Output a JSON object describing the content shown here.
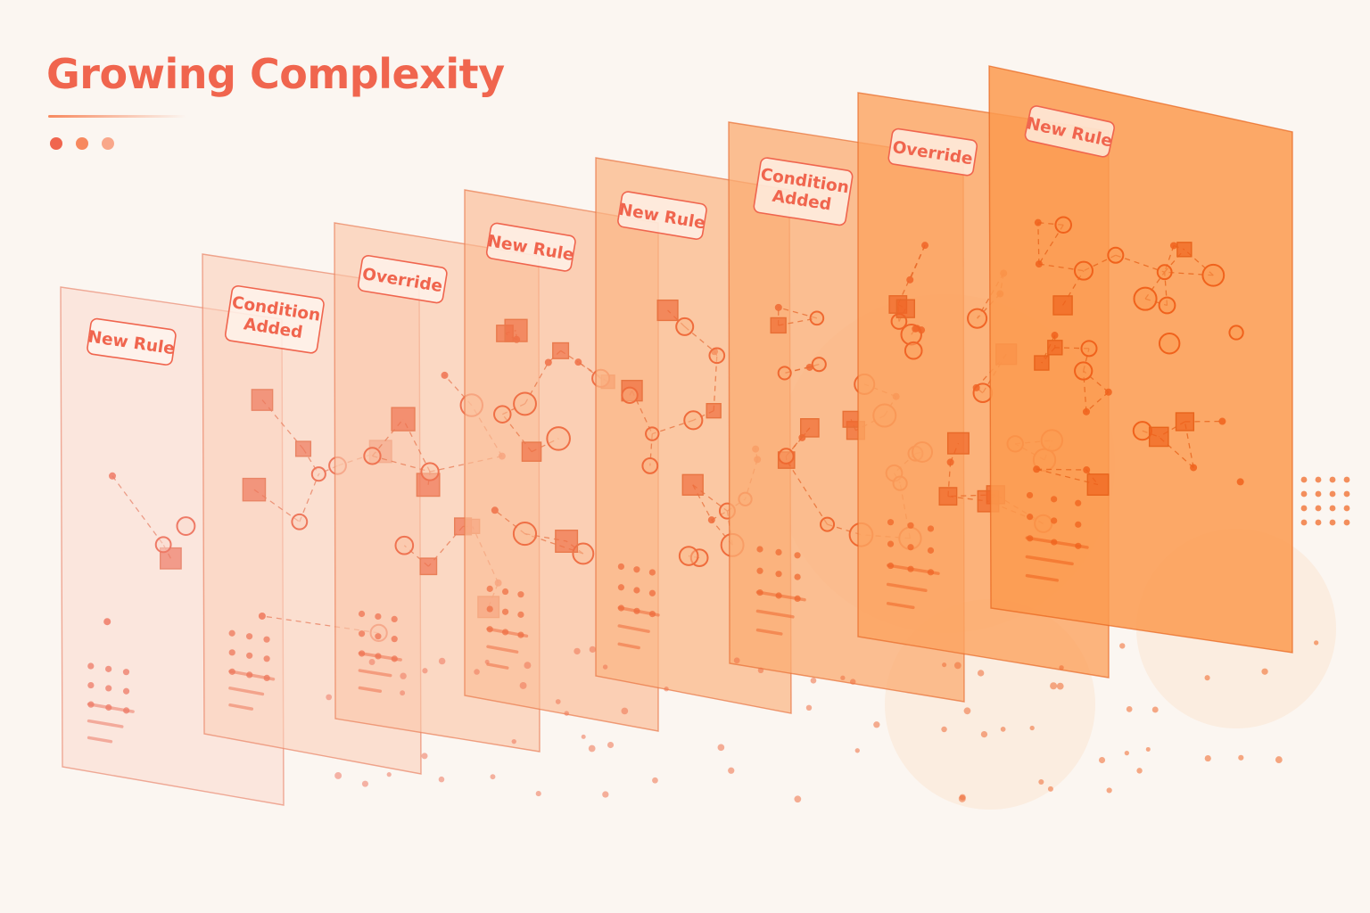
{
  "title": "Growing Complexity",
  "colors": {
    "accent": "#f0654e",
    "accent_mid": "#f7895f",
    "accent_light": "#f9a78a",
    "background": "#fbf6f1",
    "panel_start": "#fbd8cc",
    "panel_end": "#fb9a4f",
    "stroke_start": "#e98a72",
    "stroke_end": "#e8641c",
    "node_start": "#ee7a66",
    "node_end": "#f0621c"
  },
  "header_dots": [
    "#f0654e",
    "#f7895f",
    "#f9a78a"
  ],
  "panels": [
    {
      "label": [
        "New Rule"
      ],
      "density": 5
    },
    {
      "label": [
        "Condition",
        "Added"
      ],
      "density": 9
    },
    {
      "label": [
        "Override"
      ],
      "density": 13
    },
    {
      "label": [
        "New Rule"
      ],
      "density": 16
    },
    {
      "label": [
        "New Rule"
      ],
      "density": 19
    },
    {
      "label": [
        "Condition",
        "Added"
      ],
      "density": 22
    },
    {
      "label": [
        "Override"
      ],
      "density": 25
    },
    {
      "label": [
        "New Rule"
      ],
      "density": 30
    }
  ]
}
